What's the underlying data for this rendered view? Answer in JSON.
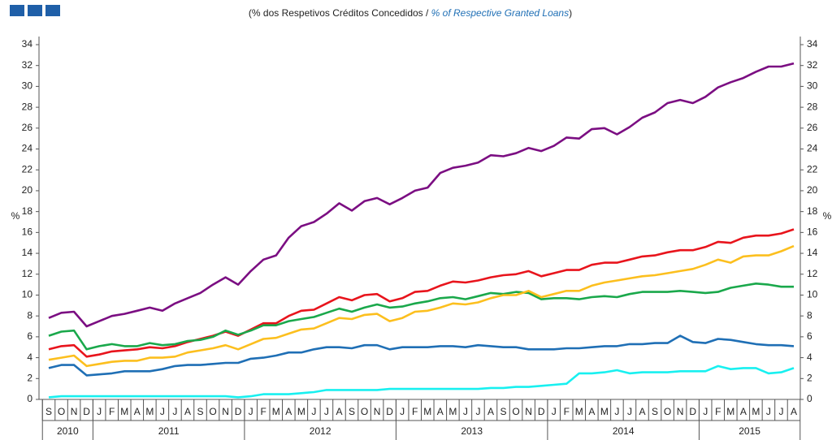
{
  "chart_data": {
    "type": "line",
    "subtitle": "(% dos Respetivos Créditos Concedidos /",
    "subtitle_en": "% of Respective Granted Loans",
    "subtitle_close": ")",
    "y_label": "%",
    "y2_label": "%",
    "categories": [
      "S",
      "O",
      "N",
      "D",
      "J",
      "F",
      "M",
      "A",
      "M",
      "J",
      "J",
      "A",
      "S",
      "O",
      "N",
      "D",
      "J",
      "F",
      "M",
      "A",
      "M",
      "J",
      "J",
      "A",
      "S",
      "O",
      "N",
      "D",
      "J",
      "F",
      "M",
      "A",
      "M",
      "J",
      "J",
      "A",
      "S",
      "O",
      "N",
      "D",
      "J",
      "F",
      "M",
      "A",
      "M",
      "J",
      "J",
      "A",
      "S",
      "O",
      "N",
      "D",
      "J",
      "F",
      "M",
      "A",
      "M",
      "J",
      "J",
      "A"
    ],
    "groups": [
      "2010",
      "2010",
      "2010",
      "2010",
      "2011",
      "2011",
      "2011",
      "2011",
      "2011",
      "2011",
      "2011",
      "2011",
      "2011",
      "2011",
      "2011",
      "2011",
      "2012",
      "2012",
      "2012",
      "2012",
      "2012",
      "2012",
      "2012",
      "2012",
      "2012",
      "2012",
      "2012",
      "2012",
      "2013",
      "2013",
      "2013",
      "2013",
      "2013",
      "2013",
      "2013",
      "2013",
      "2013",
      "2013",
      "2013",
      "2013",
      "2014",
      "2014",
      "2014",
      "2014",
      "2014",
      "2014",
      "2014",
      "2014",
      "2014",
      "2014",
      "2014",
      "2014",
      "2015",
      "2015",
      "2015",
      "2015",
      "2015",
      "2015",
      "2015",
      "2015"
    ],
    "ylim": [
      0,
      34
    ],
    "yticks": [
      0,
      2,
      4,
      6,
      8,
      10,
      12,
      14,
      16,
      18,
      20,
      22,
      24,
      26,
      28,
      30,
      32,
      34
    ],
    "y2lim": [
      0,
      34
    ],
    "y2ticks": [
      0,
      2,
      4,
      6,
      8,
      10,
      12,
      14,
      16,
      18,
      20,
      22,
      24,
      26,
      28,
      30,
      32,
      34
    ],
    "series": [
      {
        "color": "#7b0e82",
        "values": [
          7.8,
          8.3,
          8.4,
          7.0,
          7.5,
          8.0,
          8.2,
          8.5,
          8.8,
          8.5,
          9.2,
          9.7,
          10.2,
          11.0,
          11.7,
          11.0,
          12.3,
          13.4,
          13.8,
          15.5,
          16.6,
          17.0,
          17.8,
          18.8,
          18.1,
          19.0,
          19.3,
          18.7,
          19.3,
          20.0,
          20.3,
          21.7,
          22.2,
          22.4,
          22.7,
          23.4,
          23.3,
          23.6,
          24.1,
          23.8,
          24.3,
          25.1,
          25.0,
          25.9,
          26.0,
          25.4,
          26.1,
          27.0,
          27.5,
          28.4,
          28.7,
          28.4,
          29.0,
          29.9,
          30.4,
          30.8,
          31.4,
          31.9,
          31.9,
          32.2
        ]
      },
      {
        "color": "#e8141c",
        "values": [
          4.8,
          5.1,
          5.2,
          4.1,
          4.3,
          4.6,
          4.7,
          4.8,
          5.0,
          4.9,
          5.1,
          5.5,
          5.8,
          6.1,
          6.5,
          6.1,
          6.7,
          7.3,
          7.3,
          8.0,
          8.5,
          8.6,
          9.2,
          9.8,
          9.5,
          10.0,
          10.1,
          9.4,
          9.7,
          10.3,
          10.4,
          10.9,
          11.3,
          11.2,
          11.4,
          11.7,
          11.9,
          12.0,
          12.3,
          11.8,
          12.1,
          12.4,
          12.4,
          12.9,
          13.1,
          13.1,
          13.4,
          13.7,
          13.8,
          14.1,
          14.3,
          14.3,
          14.6,
          15.1,
          15.0,
          15.5,
          15.7,
          15.7,
          15.9,
          16.3
        ]
      },
      {
        "color": "#1aa84b",
        "values": [
          6.1,
          6.5,
          6.6,
          4.8,
          5.1,
          5.3,
          5.1,
          5.1,
          5.4,
          5.2,
          5.3,
          5.6,
          5.7,
          6.0,
          6.6,
          6.2,
          6.6,
          7.1,
          7.1,
          7.5,
          7.7,
          7.9,
          8.3,
          8.7,
          8.4,
          8.8,
          9.1,
          8.8,
          8.9,
          9.2,
          9.4,
          9.7,
          9.8,
          9.6,
          9.9,
          10.2,
          10.1,
          10.3,
          10.2,
          9.6,
          9.7,
          9.7,
          9.6,
          9.8,
          9.9,
          9.8,
          10.1,
          10.3,
          10.3,
          10.3,
          10.4,
          10.3,
          10.2,
          10.3,
          10.7,
          10.9,
          11.1,
          11.0,
          10.8,
          10.8
        ]
      },
      {
        "color": "#fcbf1e",
        "values": [
          3.8,
          4.0,
          4.2,
          3.2,
          3.4,
          3.6,
          3.7,
          3.7,
          4.0,
          4.0,
          4.1,
          4.5,
          4.7,
          4.9,
          5.2,
          4.8,
          5.3,
          5.8,
          5.9,
          6.3,
          6.7,
          6.8,
          7.3,
          7.8,
          7.7,
          8.1,
          8.2,
          7.5,
          7.8,
          8.4,
          8.5,
          8.8,
          9.2,
          9.1,
          9.3,
          9.7,
          10.0,
          10.0,
          10.4,
          9.8,
          10.1,
          10.4,
          10.4,
          10.9,
          11.2,
          11.4,
          11.6,
          11.8,
          11.9,
          12.1,
          12.3,
          12.5,
          12.9,
          13.4,
          13.1,
          13.7,
          13.8,
          13.8,
          14.2,
          14.7
        ]
      },
      {
        "color": "#1f6fb5",
        "values": [
          3.0,
          3.3,
          3.3,
          2.3,
          2.4,
          2.5,
          2.7,
          2.7,
          2.7,
          2.9,
          3.2,
          3.3,
          3.3,
          3.4,
          3.5,
          3.5,
          3.9,
          4.0,
          4.2,
          4.5,
          4.5,
          4.8,
          5.0,
          5.0,
          4.9,
          5.2,
          5.2,
          4.8,
          5.0,
          5.0,
          5.0,
          5.1,
          5.1,
          5.0,
          5.2,
          5.1,
          5.0,
          5.0,
          4.8,
          4.8,
          4.8,
          4.9,
          4.9,
          5.0,
          5.1,
          5.1,
          5.3,
          5.3,
          5.4,
          5.4,
          6.1,
          5.5,
          5.4,
          5.8,
          5.7,
          5.5,
          5.3,
          5.2,
          5.2,
          5.1
        ]
      },
      {
        "color": "#18f0f0",
        "values": [
          0.2,
          0.3,
          0.3,
          0.3,
          0.3,
          0.3,
          0.3,
          0.3,
          0.3,
          0.3,
          0.3,
          0.3,
          0.3,
          0.3,
          0.3,
          0.2,
          0.3,
          0.5,
          0.5,
          0.5,
          0.6,
          0.7,
          0.9,
          0.9,
          0.9,
          0.9,
          0.9,
          1.0,
          1.0,
          1.0,
          1.0,
          1.0,
          1.0,
          1.0,
          1.0,
          1.1,
          1.1,
          1.2,
          1.2,
          1.3,
          1.4,
          1.5,
          2.5,
          2.5,
          2.6,
          2.8,
          2.5,
          2.6,
          2.6,
          2.6,
          2.7,
          2.7,
          2.7,
          3.2,
          2.9,
          3.0,
          3.0,
          2.5,
          2.6,
          3.0
        ]
      }
    ]
  }
}
